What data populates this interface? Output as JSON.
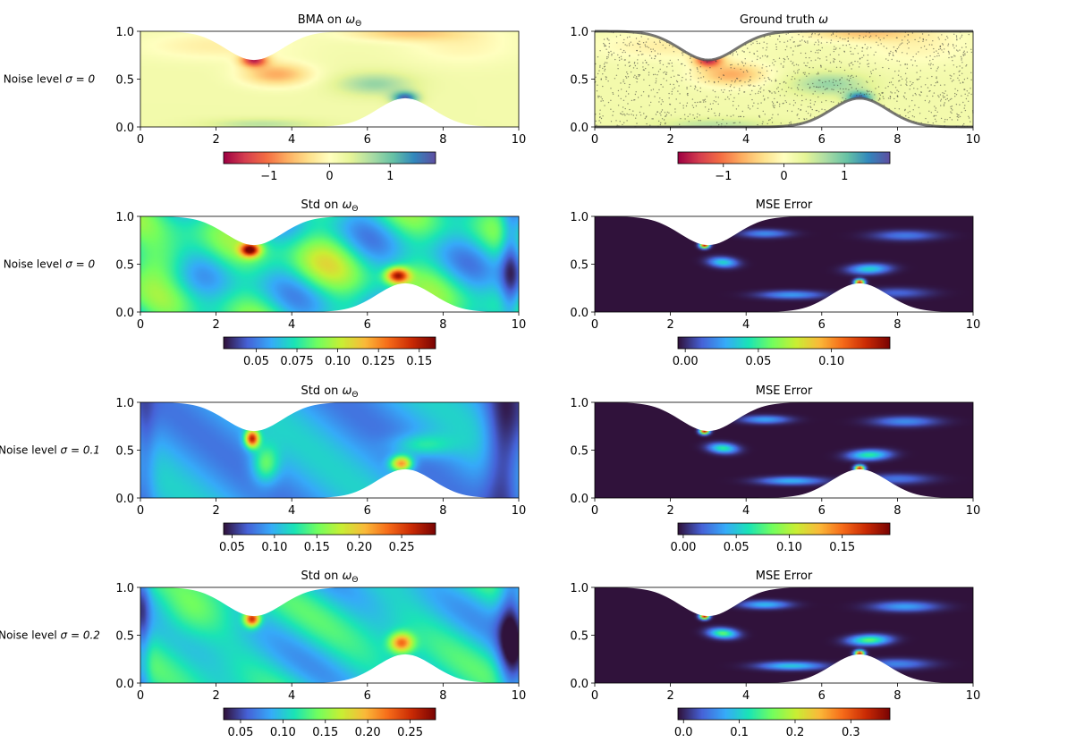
{
  "colors": {
    "mask": "#ffffff",
    "wall": "#555555",
    "points": "#333333"
  },
  "chart_data": [
    {
      "type": "heatmap",
      "title": "BMA on ω_Θ",
      "title_text": "BMA on ",
      "title_math": "ω",
      "title_sub": "Θ",
      "row_label": "Noise level σ = 0",
      "row_label_text": "Noise level ",
      "row_label_math": "σ = 0",
      "xlim": [
        0,
        10
      ],
      "ylim": [
        0,
        1
      ],
      "xticks": [
        0,
        2,
        4,
        6,
        8,
        10
      ],
      "yticks": [
        0.0,
        0.5,
        1.0
      ],
      "colormap": "Spectral",
      "field": "vorticity",
      "colorbar": {
        "range": [
          -1.75,
          1.75
        ],
        "ticks": [
          "−1",
          "0",
          "1"
        ],
        "tick_values": [
          -1,
          0,
          1
        ]
      }
    },
    {
      "type": "heatmap",
      "title": "Ground truth ω",
      "title_text": "Ground truth ",
      "title_math": "ω",
      "title_sub": "",
      "row_label": "",
      "xlim": [
        0,
        10
      ],
      "ylim": [
        0,
        1
      ],
      "xticks": [
        0,
        2,
        4,
        6,
        8,
        10
      ],
      "yticks": [
        0.0,
        0.5,
        1.0
      ],
      "colormap": "Spectral",
      "field": "vorticity",
      "scatter_overlay": true,
      "colorbar": {
        "range": [
          -1.75,
          1.75
        ],
        "ticks": [
          "−1",
          "0",
          "1"
        ],
        "tick_values": [
          -1,
          0,
          1
        ]
      }
    },
    {
      "type": "heatmap",
      "title": "Std on ω_Θ",
      "title_text": "Std on ",
      "title_math": "ω",
      "title_sub": "Θ",
      "row_label": "Noise level σ = 0",
      "row_label_text": "Noise level ",
      "row_label_math": "σ = 0",
      "xlim": [
        0,
        10
      ],
      "ylim": [
        0,
        1
      ],
      "xticks": [
        0,
        2,
        4,
        6,
        8,
        10
      ],
      "yticks": [
        0.0,
        0.5,
        1.0
      ],
      "colormap": "turbo",
      "field": "std",
      "colorbar": {
        "range": [
          0.03,
          0.16
        ],
        "ticks": [
          "0.05",
          "0.075",
          "0.10",
          "0.125",
          "0.15"
        ],
        "tick_values": [
          0.05,
          0.075,
          0.1,
          0.125,
          0.15
        ]
      }
    },
    {
      "type": "heatmap",
      "title": "MSE Error",
      "title_text": "MSE Error",
      "title_math": "",
      "title_sub": "",
      "row_label": "",
      "xlim": [
        0,
        10
      ],
      "ylim": [
        0,
        1
      ],
      "xticks": [
        0,
        2,
        4,
        6,
        8,
        10
      ],
      "yticks": [
        0.0,
        0.5,
        1.0
      ],
      "colormap": "turbo",
      "field": "mse",
      "colorbar": {
        "range": [
          -0.005,
          0.14
        ],
        "ticks": [
          "0.00",
          "0.05",
          "0.10"
        ],
        "tick_values": [
          0.0,
          0.05,
          0.1
        ]
      }
    },
    {
      "type": "heatmap",
      "title": "Std on ω_Θ",
      "title_text": "Std on ",
      "title_math": "ω",
      "title_sub": "Θ",
      "row_label": "Noise level σ = 0.1",
      "row_label_text": "Noise level ",
      "row_label_math": "σ = 0.1",
      "xlim": [
        0,
        10
      ],
      "ylim": [
        0,
        1
      ],
      "xticks": [
        0,
        2,
        4,
        6,
        8,
        10
      ],
      "yticks": [
        0.0,
        0.5,
        1.0
      ],
      "colormap": "turbo",
      "field": "std",
      "colorbar": {
        "range": [
          0.04,
          0.29
        ],
        "ticks": [
          "0.05",
          "0.10",
          "0.15",
          "0.20",
          "0.25"
        ],
        "tick_values": [
          0.05,
          0.1,
          0.15,
          0.2,
          0.25
        ]
      }
    },
    {
      "type": "heatmap",
      "title": "MSE Error",
      "title_text": "MSE Error",
      "title_math": "",
      "title_sub": "",
      "row_label": "",
      "xlim": [
        0,
        10
      ],
      "ylim": [
        0,
        1
      ],
      "xticks": [
        0,
        2,
        4,
        6,
        8,
        10
      ],
      "yticks": [
        0.0,
        0.5,
        1.0
      ],
      "colormap": "turbo",
      "field": "mse",
      "colorbar": {
        "range": [
          -0.005,
          0.195
        ],
        "ticks": [
          "0.00",
          "0.05",
          "0.10",
          "0.15"
        ],
        "tick_values": [
          0.0,
          0.05,
          0.1,
          0.15
        ]
      }
    },
    {
      "type": "heatmap",
      "title": "Std on ω_Θ",
      "title_text": "Std on ",
      "title_math": "ω",
      "title_sub": "Θ",
      "row_label": "Noise level σ = 0.2",
      "row_label_text": "Noise level ",
      "row_label_math": "σ = 0.2",
      "xlim": [
        0,
        10
      ],
      "ylim": [
        0,
        1
      ],
      "xticks": [
        0,
        2,
        4,
        6,
        8,
        10
      ],
      "yticks": [
        0.0,
        0.5,
        1.0
      ],
      "colormap": "turbo",
      "field": "std",
      "colorbar": {
        "range": [
          0.03,
          0.28
        ],
        "ticks": [
          "0.05",
          "0.10",
          "0.15",
          "0.20",
          "0.25"
        ],
        "tick_values": [
          0.05,
          0.1,
          0.15,
          0.2,
          0.25
        ]
      }
    },
    {
      "type": "heatmap",
      "title": "MSE Error",
      "title_text": "MSE Error",
      "title_math": "",
      "title_sub": "",
      "row_label": "",
      "xlim": [
        0,
        10
      ],
      "ylim": [
        0,
        1
      ],
      "xticks": [
        0,
        2,
        4,
        6,
        8,
        10
      ],
      "yticks": [
        0.0,
        0.5,
        1.0
      ],
      "colormap": "turbo",
      "field": "mse",
      "colorbar": {
        "range": [
          -0.01,
          0.37
        ],
        "ticks": [
          "0.0",
          "0.1",
          "0.2",
          "0.3"
        ],
        "tick_values": [
          0.0,
          0.1,
          0.2,
          0.3
        ]
      }
    }
  ]
}
